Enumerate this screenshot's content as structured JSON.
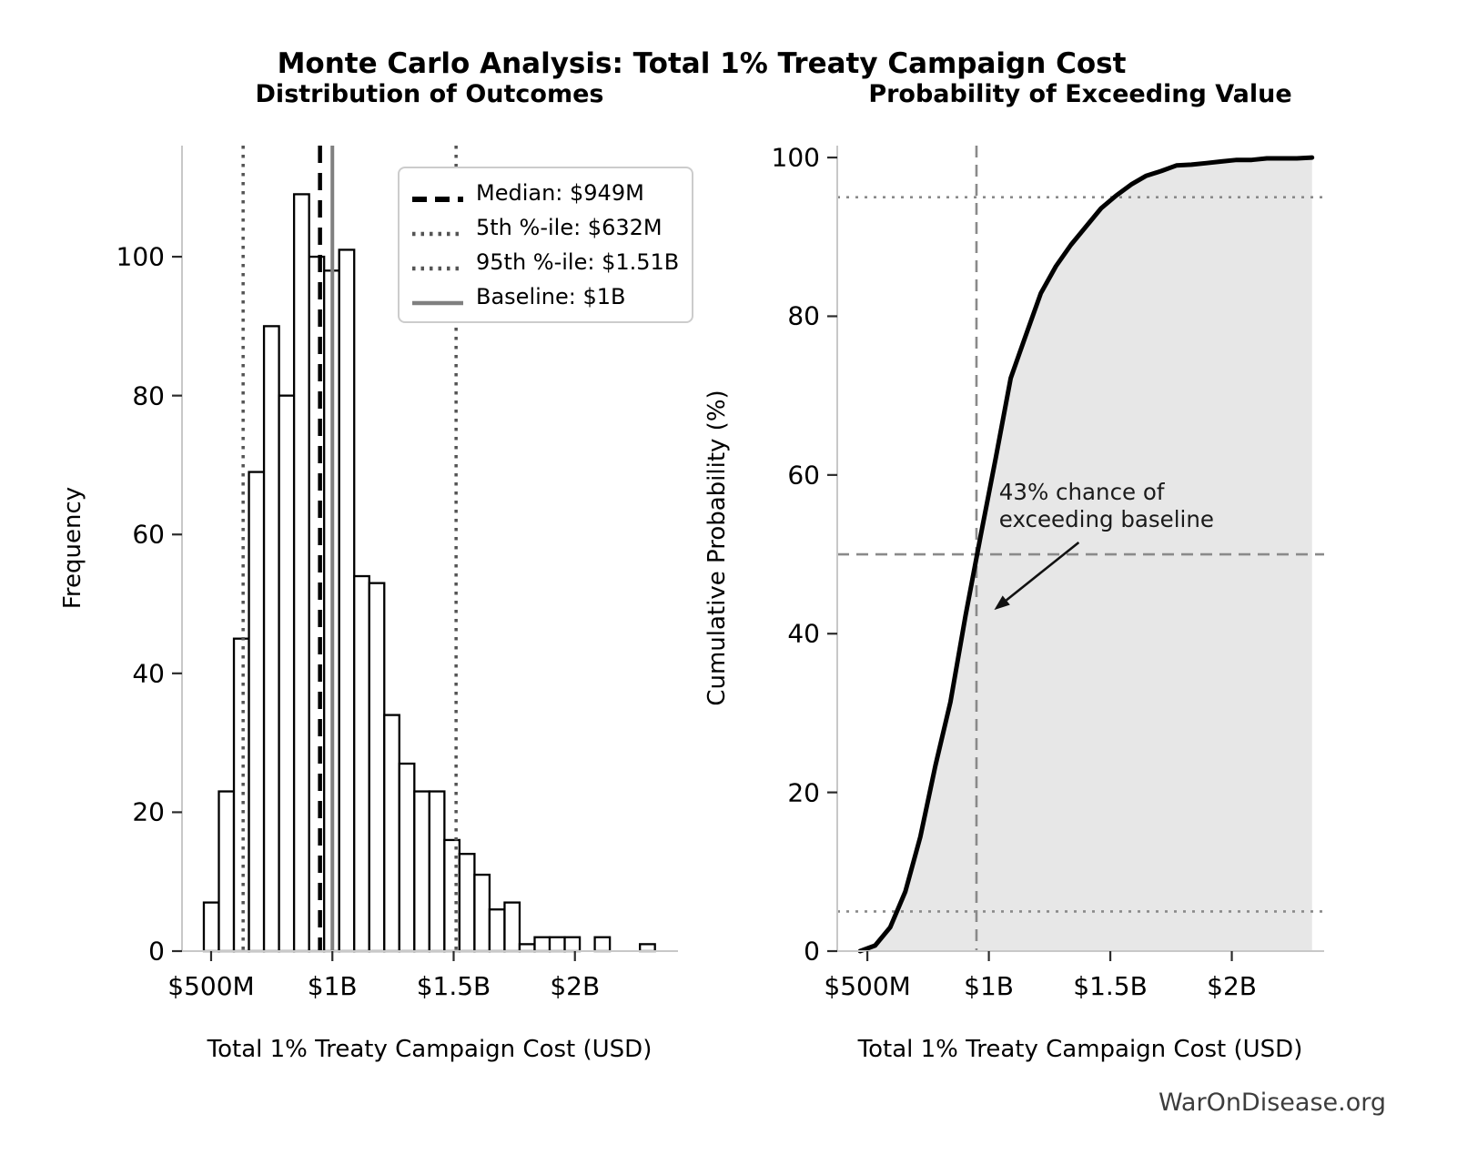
{
  "page": {
    "title": "Monte Carlo Analysis: Total 1% Treaty Campaign Cost",
    "watermark": "WarOnDisease.org"
  },
  "chart_data": [
    {
      "type": "bar",
      "subtype": "histogram",
      "title": "Distribution of Outcomes",
      "xlabel": "Total 1% Treaty Campaign Cost (USD)",
      "ylabel": "Frequency",
      "x_tick_values_musd": [
        500,
        1000,
        1500,
        2000
      ],
      "x_tick_labels": [
        "$500M",
        "$1B",
        "$1.5B",
        "$2B"
      ],
      "y_ticks": [
        0,
        20,
        40,
        60,
        80,
        100
      ],
      "xlim_musd": [
        380,
        2425
      ],
      "ylim": [
        0,
        116
      ],
      "grid": false,
      "total_simulations": 1000,
      "bar_fill": "#ffffff",
      "bar_edge": "#000000",
      "bins": {
        "start_musd": 470,
        "width_musd": 62,
        "counts": [
          7,
          23,
          45,
          69,
          90,
          80,
          109,
          100,
          98,
          101,
          54,
          53,
          34,
          27,
          23,
          23,
          16,
          14,
          11,
          6,
          7,
          1,
          2,
          2,
          2,
          0,
          2,
          0,
          0,
          1
        ]
      },
      "reference_lines": [
        {
          "id": "median",
          "label": "Median: $949M",
          "value_musd": 949,
          "style": "dashed",
          "color": "#000000",
          "width": 4.5
        },
        {
          "id": "p5",
          "label": "5th %-ile: $632M",
          "value_musd": 632,
          "style": "dotted",
          "color": "#545454",
          "width": 3.5
        },
        {
          "id": "p95",
          "label": "95th %-ile: $1.51B",
          "value_musd": 1510,
          "style": "dotted",
          "color": "#545454",
          "width": 3.5
        },
        {
          "id": "baseline",
          "label": "Baseline: $1B",
          "value_musd": 1000,
          "style": "solid",
          "color": "#808080",
          "width": 4
        }
      ],
      "legend_position": "upper right"
    },
    {
      "type": "line",
      "subtype": "empirical-cdf",
      "title": "Probability of Exceeding Value",
      "xlabel": "Total 1% Treaty Campaign Cost (USD)",
      "ylabel": "Cumulative Probability (%)",
      "x_tick_values_musd": [
        500,
        1000,
        1500,
        2000
      ],
      "x_tick_labels": [
        "$500M",
        "$1B",
        "$1.5B",
        "$2B"
      ],
      "y_ticks": [
        0,
        20,
        40,
        60,
        80,
        100
      ],
      "xlim_musd": [
        376,
        2380
      ],
      "ylim": [
        0,
        101.5
      ],
      "grid": false,
      "series": [
        {
          "name": "cumulative_probability",
          "x_start_musd": 470,
          "x_step_musd": 62,
          "y_pct": [
            0,
            0.7,
            3.0,
            7.5,
            14.4,
            23.4,
            31.4,
            42.3,
            52.3,
            62.1,
            72.2,
            77.6,
            82.9,
            86.3,
            89.0,
            91.3,
            93.6,
            95.2,
            96.6,
            97.7,
            98.3,
            99.0,
            99.1,
            99.3,
            99.5,
            99.7,
            99.7,
            99.9,
            99.9,
            99.9,
            100.0
          ],
          "color": "#000000",
          "fill_color": "#e7e7e7",
          "line_width": 5
        }
      ],
      "reference_lines": [
        {
          "id": "median-cost",
          "orientation": "vertical",
          "value_musd": 949,
          "style": "dashed",
          "color": "#8a8a8a",
          "width": 2.6
        },
        {
          "id": "p50",
          "orientation": "horizontal",
          "value_pct": 50,
          "style": "dashed",
          "color": "#8a8a8a",
          "width": 2.6
        },
        {
          "id": "p5",
          "orientation": "horizontal",
          "value_pct": 5,
          "style": "dotted",
          "color": "#8a8a8a",
          "width": 2.6
        },
        {
          "id": "p95",
          "orientation": "horizontal",
          "value_pct": 95,
          "style": "dotted",
          "color": "#8a8a8a",
          "width": 2.6
        }
      ],
      "annotation": {
        "text": "43% chance of\nexceeding baseline",
        "exceed_probability_pct": 43,
        "text_anchor_musd_pct": [
          1042,
          59.5
        ],
        "arrow_from_musd_pct": [
          1370,
          51.5
        ],
        "arrow_to_musd_pct": [
          1022,
          43
        ]
      }
    }
  ]
}
